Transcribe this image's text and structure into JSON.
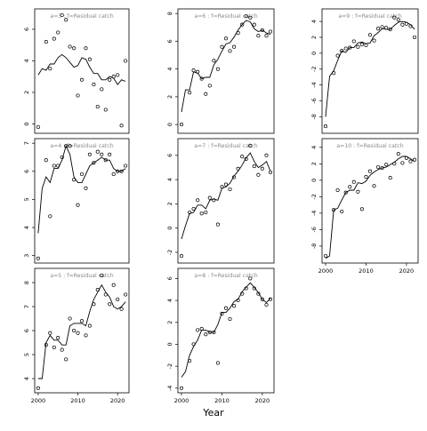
{
  "figure": {
    "xlabel": "Year"
  },
  "chart_data": [
    {
      "type": "scatter",
      "panel_title": "a=5  :  f=Residual catch",
      "xlim": [
        2000,
        2022
      ],
      "ylim": [
        3.6,
        8.4
      ],
      "yticks": [
        4,
        5,
        6,
        7,
        8
      ],
      "xticks": [
        2000,
        2010,
        2020
      ],
      "grid": false,
      "points": {
        "x": [
          2000,
          2002,
          2003,
          2004,
          2005,
          2006,
          2007,
          2008,
          2009,
          2010,
          2011,
          2012,
          2013,
          2014,
          2015,
          2016,
          2017,
          2018,
          2019,
          2020,
          2021,
          2022
        ],
        "y": [
          3.6,
          5.4,
          5.9,
          5.3,
          5.7,
          5.2,
          4.8,
          6.5,
          6.0,
          5.9,
          6.4,
          5.8,
          6.2,
          7.1,
          7.7,
          8.3,
          7.5,
          7.1,
          7.9,
          7.3,
          6.9,
          7.5
        ]
      },
      "fit": {
        "x": [
          2000,
          2001,
          2002,
          2003,
          2004,
          2005,
          2006,
          2007,
          2008,
          2009,
          2010,
          2011,
          2012,
          2013,
          2014,
          2015,
          2016,
          2017,
          2018,
          2019,
          2020,
          2021,
          2022
        ],
        "y": [
          4.0,
          4.0,
          5.5,
          5.8,
          5.6,
          5.6,
          5.4,
          5.4,
          6.2,
          6.3,
          6.3,
          6.3,
          6.2,
          6.8,
          7.3,
          7.6,
          7.9,
          7.6,
          7.4,
          7.0,
          6.9,
          7.0,
          7.2
        ]
      }
    },
    {
      "type": "scatter",
      "panel_title": "a=4  :  f=Residual catch",
      "xlim": [
        2000,
        2022
      ],
      "ylim": [
        2.9,
        7.0
      ],
      "yticks": [
        3,
        4,
        5,
        6,
        7
      ],
      "xticks": [
        2000,
        2010,
        2020
      ],
      "grid": false,
      "points": {
        "x": [
          2000,
          2002,
          2003,
          2004,
          2005,
          2006,
          2007,
          2008,
          2009,
          2010,
          2011,
          2012,
          2013,
          2014,
          2015,
          2016,
          2017,
          2018,
          2019,
          2020,
          2021,
          2022
        ],
        "y": [
          2.9,
          6.4,
          4.4,
          6.2,
          6.2,
          6.5,
          6.9,
          6.9,
          5.7,
          4.8,
          5.9,
          5.4,
          6.6,
          6.3,
          6.7,
          6.6,
          6.4,
          6.6,
          5.9,
          6.0,
          6.0,
          6.2
        ]
      },
      "fit": {
        "x": [
          2000,
          2001,
          2002,
          2003,
          2004,
          2005,
          2006,
          2007,
          2008,
          2009,
          2010,
          2011,
          2012,
          2013,
          2014,
          2015,
          2016,
          2017,
          2018,
          2019,
          2020,
          2021,
          2022
        ],
        "y": [
          3.8,
          5.4,
          5.8,
          5.6,
          6.1,
          6.1,
          6.4,
          6.9,
          6.6,
          5.8,
          5.6,
          5.6,
          5.9,
          6.2,
          6.3,
          6.4,
          6.5,
          6.4,
          6.4,
          6.1,
          6.0,
          6.0,
          6.1
        ]
      }
    },
    {
      "type": "scatter",
      "panel_title": "a=3  :  f=Residual catch",
      "xlim": [
        2000,
        2022
      ],
      "ylim": [
        -0.3,
        7.0
      ],
      "yticks": [
        0,
        2,
        4,
        6
      ],
      "xticks": [
        2000,
        2010,
        2020
      ],
      "grid": false,
      "points": {
        "x": [
          2000,
          2002,
          2003,
          2004,
          2005,
          2006,
          2007,
          2008,
          2009,
          2010,
          2011,
          2012,
          2013,
          2014,
          2015,
          2016,
          2017,
          2018,
          2019,
          2020,
          2021,
          2022
        ],
        "y": [
          -0.2,
          5.2,
          3.5,
          5.4,
          5.8,
          6.9,
          6.6,
          4.9,
          4.8,
          1.8,
          2.8,
          4.8,
          4.1,
          2.5,
          1.1,
          2.2,
          0.9,
          2.8,
          3.0,
          3.1,
          -0.1,
          4.0
        ]
      },
      "fit": {
        "x": [
          2000,
          2001,
          2002,
          2003,
          2004,
          2005,
          2006,
          2007,
          2008,
          2009,
          2010,
          2011,
          2012,
          2013,
          2014,
          2015,
          2016,
          2017,
          2018,
          2019,
          2020,
          2021,
          2022
        ],
        "y": [
          3.1,
          3.5,
          3.4,
          3.8,
          3.8,
          4.2,
          4.4,
          4.2,
          3.9,
          3.6,
          3.7,
          4.2,
          4.1,
          3.6,
          3.2,
          3.2,
          2.8,
          2.8,
          3.0,
          2.9,
          2.5,
          2.8,
          2.7
        ]
      }
    },
    {
      "type": "scatter",
      "panel_title": "a=8  :  f=Residual catch",
      "xlim": [
        2000,
        2022
      ],
      "ylim": [
        -4.0,
        6.5
      ],
      "yticks": [
        -4,
        -2,
        0,
        2,
        4,
        6
      ],
      "xticks": [
        2000,
        2010,
        2020
      ],
      "grid": false,
      "points": {
        "x": [
          2000,
          2002,
          2003,
          2004,
          2005,
          2006,
          2007,
          2008,
          2009,
          2010,
          2011,
          2012,
          2013,
          2014,
          2015,
          2016,
          2017,
          2018,
          2019,
          2020,
          2021,
          2022
        ],
        "y": [
          -4.0,
          -1.5,
          0.0,
          1.3,
          1.4,
          0.9,
          1.1,
          1.1,
          -1.7,
          2.8,
          3.3,
          2.3,
          3.5,
          4.0,
          4.6,
          5.1,
          6.0,
          5.1,
          4.6,
          4.1,
          3.6,
          4.1
        ]
      },
      "fit": {
        "x": [
          2000,
          2001,
          2002,
          2003,
          2004,
          2005,
          2006,
          2007,
          2008,
          2009,
          2010,
          2011,
          2012,
          2013,
          2014,
          2015,
          2016,
          2017,
          2018,
          2019,
          2020,
          2021,
          2022
        ],
        "y": [
          -3.0,
          -2.5,
          -1.0,
          -0.2,
          0.4,
          1.3,
          1.3,
          1.1,
          1.1,
          1.8,
          2.9,
          2.9,
          3.3,
          3.9,
          4.1,
          4.8,
          5.2,
          5.6,
          5.2,
          4.7,
          4.1,
          3.8,
          4.2
        ]
      }
    },
    {
      "type": "scatter",
      "panel_title": "a=7  :  f=Residual catch",
      "xlim": [
        2000,
        2022
      ],
      "ylim": [
        -2.5,
        7.0
      ],
      "yticks": [
        -2,
        0,
        2,
        4,
        6
      ],
      "xticks": [
        2000,
        2010,
        2020
      ],
      "grid": false,
      "points": {
        "x": [
          2000,
          2002,
          2003,
          2004,
          2005,
          2006,
          2007,
          2008,
          2009,
          2010,
          2011,
          2012,
          2013,
          2014,
          2015,
          2016,
          2017,
          2018,
          2019,
          2020,
          2021,
          2022
        ],
        "y": [
          -2.3,
          1.3,
          1.6,
          2.3,
          1.2,
          1.3,
          2.5,
          2.3,
          0.3,
          3.4,
          3.6,
          3.2,
          4.2,
          4.9,
          5.9,
          5.7,
          6.8,
          5.1,
          4.4,
          4.9,
          6.0,
          4.6
        ]
      },
      "fit": {
        "x": [
          2000,
          2001,
          2002,
          2003,
          2004,
          2005,
          2006,
          2007,
          2008,
          2009,
          2010,
          2011,
          2012,
          2013,
          2014,
          2015,
          2016,
          2017,
          2018,
          2019,
          2020,
          2021,
          2022
        ],
        "y": [
          -0.9,
          0.2,
          1.2,
          1.3,
          1.9,
          1.9,
          1.6,
          2.3,
          2.4,
          2.3,
          3.3,
          3.4,
          3.7,
          4.3,
          4.7,
          5.2,
          5.8,
          6.2,
          5.5,
          5.0,
          5.2,
          5.5,
          4.7
        ]
      }
    },
    {
      "type": "scatter",
      "panel_title": "a=6  :  f=Residual catch",
      "xlim": [
        2000,
        2022
      ],
      "ylim": [
        -0.3,
        8.0
      ],
      "yticks": [
        0,
        2,
        4,
        6,
        8
      ],
      "xticks": [
        2000,
        2010,
        2020
      ],
      "grid": false,
      "points": {
        "x": [
          2000,
          2002,
          2003,
          2004,
          2005,
          2006,
          2007,
          2008,
          2009,
          2010,
          2011,
          2012,
          2013,
          2014,
          2015,
          2016,
          2017,
          2018,
          2019,
          2020,
          2021,
          2022
        ],
        "y": [
          0.0,
          2.3,
          3.9,
          3.8,
          3.3,
          2.2,
          2.8,
          4.6,
          4.0,
          5.6,
          6.2,
          5.3,
          5.6,
          6.6,
          7.2,
          7.8,
          7.7,
          7.2,
          6.4,
          6.8,
          6.4,
          6.7
        ]
      },
      "fit": {
        "x": [
          2000,
          2001,
          2002,
          2003,
          2004,
          2005,
          2006,
          2007,
          2008,
          2009,
          2010,
          2011,
          2012,
          2013,
          2014,
          2015,
          2016,
          2017,
          2018,
          2019,
          2020,
          2021,
          2022
        ],
        "y": [
          0.9,
          2.5,
          2.5,
          3.8,
          3.7,
          3.3,
          3.4,
          3.4,
          4.3,
          4.7,
          5.3,
          5.8,
          5.9,
          6.3,
          6.8,
          7.2,
          7.5,
          7.4,
          6.9,
          6.7,
          6.8,
          6.6,
          6.5
        ]
      }
    },
    {
      "type": "scatter",
      "panel_title": "a=10  :  f=Residual catch",
      "xlim": [
        2000,
        2022
      ],
      "ylim": [
        -9.5,
        4.5
      ],
      "yticks": [
        -8,
        -6,
        -4,
        -2,
        0,
        2,
        4
      ],
      "xticks": [
        2000,
        2010,
        2020
      ],
      "grid": false,
      "points": {
        "x": [
          2000,
          2002,
          2003,
          2004,
          2005,
          2006,
          2007,
          2008,
          2009,
          2010,
          2011,
          2012,
          2013,
          2014,
          2015,
          2016,
          2017,
          2018,
          2019,
          2020,
          2021,
          2022
        ],
        "y": [
          -9.2,
          -3.6,
          -1.2,
          -3.8,
          -1.5,
          -0.8,
          -0.2,
          -1.4,
          -3.5,
          0.4,
          1.1,
          -0.7,
          1.6,
          1.5,
          1.9,
          0.3,
          2.0,
          3.2,
          2.1,
          2.7,
          2.3,
          2.5
        ]
      },
      "fit": {
        "x": [
          2000,
          2001,
          2002,
          2003,
          2004,
          2005,
          2006,
          2007,
          2008,
          2009,
          2010,
          2011,
          2012,
          2013,
          2014,
          2015,
          2016,
          2017,
          2018,
          2019,
          2020,
          2021,
          2022
        ],
        "y": [
          -9.5,
          -9.2,
          -3.6,
          -3.4,
          -2.4,
          -1.5,
          -1.2,
          -1.2,
          -0.3,
          -0.4,
          -0.1,
          0.6,
          1.0,
          1.3,
          1.5,
          1.6,
          1.9,
          2.2,
          2.6,
          2.9,
          2.9,
          2.6,
          2.3
        ]
      }
    },
    {
      "type": "scatter",
      "panel_title": "a=9  :  f=Residual catch",
      "xlim": [
        2000,
        2022
      ],
      "ylim": [
        -9.5,
        5.0
      ],
      "yticks": [
        -8,
        -6,
        -4,
        -2,
        0,
        2,
        4
      ],
      "xticks": [
        2000,
        2010,
        2020
      ],
      "grid": false,
      "points": {
        "x": [
          2000,
          2002,
          2003,
          2004,
          2005,
          2006,
          2007,
          2008,
          2009,
          2010,
          2011,
          2012,
          2013,
          2014,
          2015,
          2016,
          2017,
          2018,
          2019,
          2020,
          2021,
          2022
        ],
        "y": [
          -9.2,
          -2.5,
          -0.3,
          0.3,
          0.6,
          0.7,
          1.5,
          0.8,
          1.1,
          1.0,
          2.3,
          1.6,
          3.1,
          3.3,
          3.2,
          3.0,
          4.5,
          4.2,
          3.6,
          3.7,
          3.4,
          2.0
        ]
      },
      "fit": {
        "x": [
          2000,
          2001,
          2002,
          2003,
          2004,
          2005,
          2006,
          2007,
          2008,
          2009,
          2010,
          2011,
          2012,
          2013,
          2014,
          2015,
          2016,
          2017,
          2018,
          2019,
          2020,
          2021,
          2022
        ],
        "y": [
          -8.0,
          -2.9,
          -2.2,
          -0.9,
          0.3,
          0.1,
          0.7,
          0.7,
          1.3,
          1.4,
          1.2,
          1.3,
          2.2,
          2.6,
          3.1,
          3.0,
          3.0,
          3.5,
          3.9,
          4.0,
          3.9,
          3.6,
          3.0
        ]
      }
    }
  ]
}
